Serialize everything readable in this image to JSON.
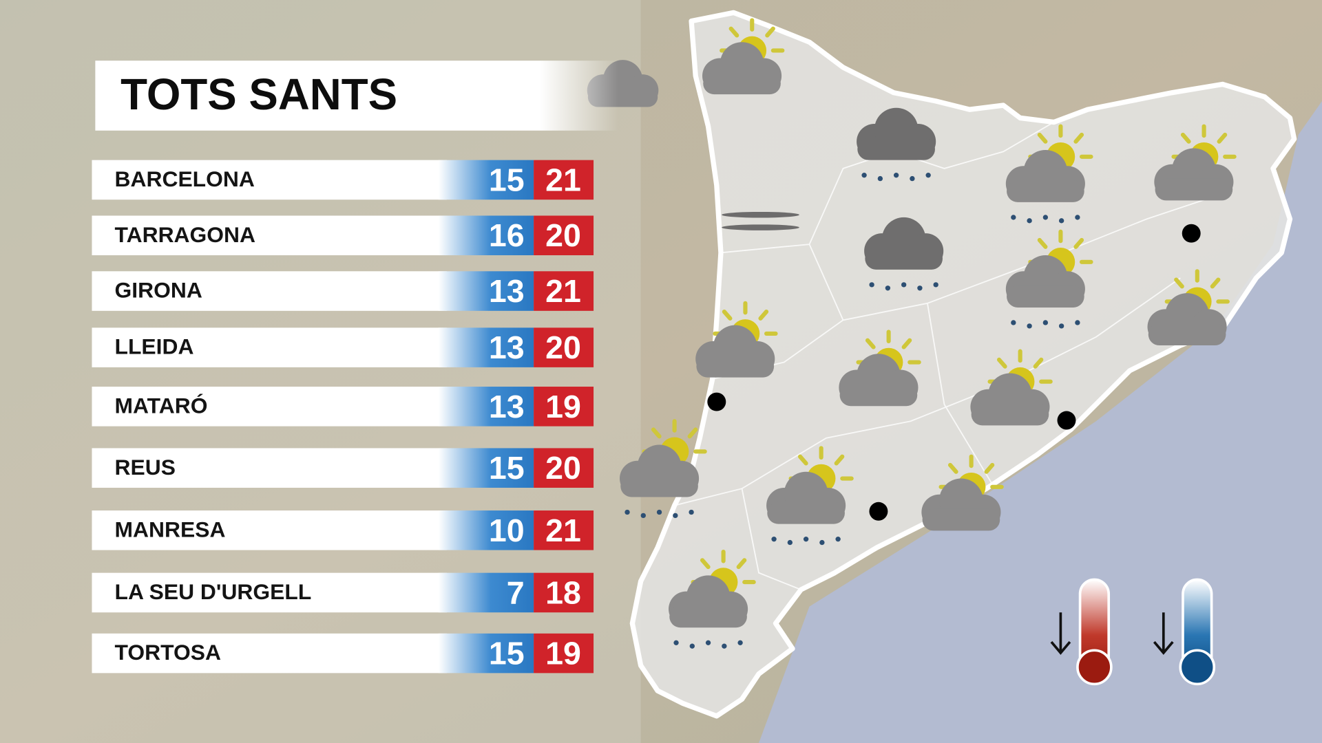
{
  "title": "TOTS SANTS",
  "table": {
    "rows": [
      {
        "city": "BARCELONA",
        "min": 15,
        "max": 21
      },
      {
        "city": "TARRAGONA",
        "min": 16,
        "max": 20
      },
      {
        "city": "GIRONA",
        "min": 13,
        "max": 21
      },
      {
        "city": "LLEIDA",
        "min": 13,
        "max": 20
      },
      {
        "city": "MATARÓ",
        "min": 13,
        "max": 19
      },
      {
        "city": "REUS",
        "min": 15,
        "max": 20
      },
      {
        "city": "MANRESA",
        "min": 10,
        "max": 21
      },
      {
        "city": "LA SEU D'URGELL",
        "min": 7,
        "max": 18
      },
      {
        "city": "TORTOSA",
        "min": 15,
        "max": 19
      }
    ]
  }
}
